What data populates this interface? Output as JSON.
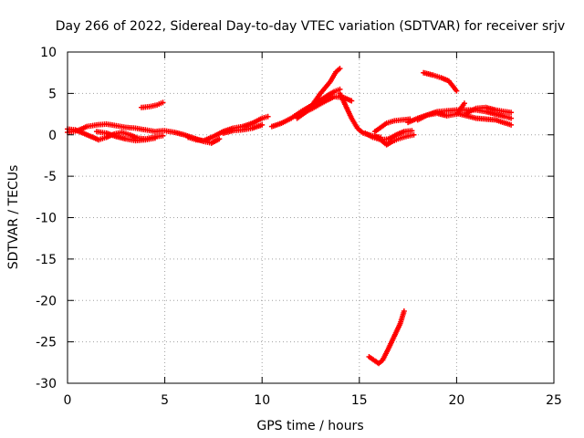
{
  "chart_data": {
    "type": "scatter",
    "title": "Day 266 of 2022, Sidereal Day-to-day VTEC variation (SDTVAR) for receiver srjv",
    "xlabel": "GPS time / hours",
    "ylabel": "SDTVAR / TECUs",
    "xlim": [
      0,
      25
    ],
    "ylim": [
      -30,
      10
    ],
    "xticks": [
      0,
      5,
      10,
      15,
      20,
      25
    ],
    "yticks": [
      10,
      5,
      0,
      -5,
      -10,
      -15,
      -20,
      -25,
      -30
    ],
    "grid": true,
    "marker": "plus",
    "color": "#ff0000",
    "series": [
      {
        "name": "t1",
        "x": [
          0,
          0.5,
          1.0,
          1.5,
          2.0,
          2.5,
          3.0,
          3.5,
          4.0,
          4.5,
          4.9
        ],
        "y": [
          0.3,
          0.5,
          1.0,
          1.2,
          1.3,
          1.1,
          0.9,
          0.8,
          0.6,
          0.4,
          0.5
        ]
      },
      {
        "name": "t2",
        "x": [
          0,
          0.4,
          0.8,
          1.2,
          1.6,
          2.0,
          2.4,
          2.8,
          3.2,
          3.6,
          4.0,
          4.4,
          4.9
        ],
        "y": [
          0.7,
          0.6,
          0.2,
          -0.2,
          -0.6,
          -0.3,
          0.1,
          0.3,
          0.0,
          -0.4,
          -0.5,
          -0.3,
          -0.1
        ]
      },
      {
        "name": "t3",
        "x": [
          1.5,
          2.0,
          2.5,
          3.0,
          3.5,
          4.0,
          4.5
        ],
        "y": [
          0.4,
          0.2,
          -0.2,
          -0.5,
          -0.7,
          -0.6,
          -0.4
        ]
      },
      {
        "name": "t4",
        "x": [
          3.8,
          4.2,
          4.6,
          4.9
        ],
        "y": [
          3.3,
          3.4,
          3.6,
          3.9
        ]
      },
      {
        "name": "t5",
        "x": [
          5.0,
          5.5,
          6.0,
          6.5,
          7.0,
          7.4,
          7.8
        ],
        "y": [
          0.5,
          0.3,
          0.0,
          -0.4,
          -0.8,
          -1.0,
          -0.5
        ]
      },
      {
        "name": "t6",
        "x": [
          6.2,
          6.6,
          7.0,
          7.5,
          8.0,
          8.5,
          9.0,
          9.5,
          10.0,
          10.3
        ],
        "y": [
          -0.3,
          -0.6,
          -0.7,
          -0.2,
          0.4,
          0.8,
          1.0,
          1.4,
          2.0,
          2.2
        ]
      },
      {
        "name": "t7",
        "x": [
          8.0,
          8.5,
          9.0,
          9.5,
          10.0
        ],
        "y": [
          0.2,
          0.5,
          0.6,
          0.8,
          1.2
        ]
      },
      {
        "name": "t8",
        "x": [
          10.5,
          11.0,
          11.5,
          12.0,
          12.5,
          13.0,
          13.4,
          13.7,
          14.0
        ],
        "y": [
          1.0,
          1.4,
          2.0,
          2.8,
          3.5,
          4.2,
          4.8,
          5.2,
          5.5
        ]
      },
      {
        "name": "t9",
        "x": [
          11.8,
          12.4,
          13.0,
          13.5,
          13.8,
          14.0
        ],
        "y": [
          2.0,
          3.0,
          5.0,
          6.4,
          7.6,
          8.0
        ]
      },
      {
        "name": "t10",
        "x": [
          12.0,
          12.6,
          13.2,
          13.7,
          14.2,
          14.6
        ],
        "y": [
          2.5,
          3.2,
          4.0,
          4.6,
          4.5,
          4.1
        ]
      },
      {
        "name": "t11",
        "x": [
          14.0,
          14.3,
          14.6,
          14.9,
          15.2,
          15.5,
          15.8,
          16.1
        ],
        "y": [
          5.0,
          3.5,
          2.0,
          0.8,
          0.2,
          0.0,
          -0.2,
          -0.3
        ]
      },
      {
        "name": "t12",
        "x": [
          15.3,
          15.7,
          16.1,
          16.5,
          16.9,
          17.3,
          17.7
        ],
        "y": [
          0.2,
          -0.3,
          -0.6,
          -0.5,
          0.0,
          0.4,
          0.5
        ]
      },
      {
        "name": "t13",
        "x": [
          15.8,
          16.1,
          16.4,
          16.7,
          17.0,
          17.4,
          17.8
        ],
        "y": [
          -0.1,
          -0.6,
          -1.2,
          -0.8,
          -0.5,
          -0.2,
          0.0
        ]
      },
      {
        "name": "t14",
        "x": [
          15.8,
          16.1,
          16.4,
          16.8,
          17.2,
          17.6
        ],
        "y": [
          0.4,
          0.9,
          1.4,
          1.7,
          1.8,
          1.9
        ]
      },
      {
        "name": "t15",
        "x": [
          17.5,
          18.0,
          18.5,
          19.0,
          19.5,
          20.0,
          20.5,
          21.0,
          21.5,
          22.0,
          22.5,
          22.8
        ],
        "y": [
          1.5,
          2.0,
          2.4,
          2.8,
          2.9,
          3.0,
          3.0,
          3.0,
          2.8,
          2.5,
          2.2,
          2.0
        ]
      },
      {
        "name": "t16",
        "x": [
          18.0,
          18.5,
          19.0,
          19.5,
          20.0,
          20.4
        ],
        "y": [
          1.8,
          2.4,
          2.6,
          2.3,
          2.5,
          3.8
        ]
      },
      {
        "name": "t17",
        "x": [
          20.5,
          21.0,
          21.5,
          22.0,
          22.5,
          22.8
        ],
        "y": [
          2.6,
          3.2,
          3.3,
          3.0,
          2.8,
          2.7
        ]
      },
      {
        "name": "t18",
        "x": [
          20.0,
          21.0,
          22.0,
          22.8
        ],
        "y": [
          2.6,
          2.0,
          1.8,
          1.2
        ]
      },
      {
        "name": "t19",
        "x": [
          18.3,
          18.8,
          19.2,
          19.6,
          20.0
        ],
        "y": [
          7.5,
          7.2,
          6.9,
          6.5,
          5.3
        ]
      },
      {
        "name": "t20",
        "x": [
          15.5,
          15.8,
          16.0,
          16.2,
          16.5,
          16.8,
          17.1,
          17.3
        ],
        "y": [
          -26.8,
          -27.3,
          -27.6,
          -27.2,
          -25.8,
          -24.3,
          -22.8,
          -21.3
        ]
      }
    ]
  }
}
